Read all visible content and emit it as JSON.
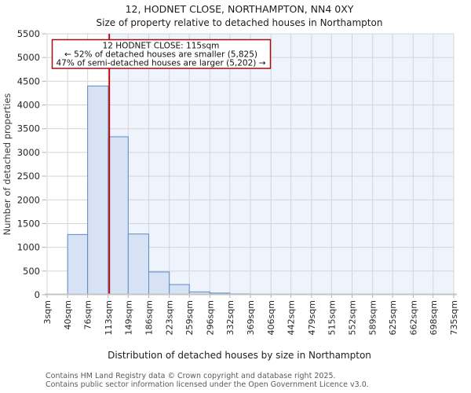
{
  "chart_data": {
    "type": "bar",
    "title": "12, HODNET CLOSE, NORTHAMPTON, NN4 0XY",
    "subtitle": "Size of property relative to detached houses in Northampton",
    "xlabel": "Distribution of detached houses by size in Northampton",
    "ylabel": "Number of detached properties",
    "bin_edges_sqm": [
      3,
      40,
      76,
      113,
      149,
      186,
      223,
      259,
      296,
      332,
      369,
      406,
      442,
      479,
      515,
      552,
      589,
      625,
      662,
      698,
      735
    ],
    "bin_labels": [
      "3sqm",
      "40sqm",
      "76sqm",
      "113sqm",
      "149sqm",
      "186sqm",
      "223sqm",
      "259sqm",
      "296sqm",
      "332sqm",
      "369sqm",
      "406sqm",
      "442sqm",
      "479sqm",
      "515sqm",
      "552sqm",
      "589sqm",
      "625sqm",
      "662sqm",
      "698sqm",
      "735sqm"
    ],
    "values": [
      0,
      1270,
      4400,
      3330,
      1280,
      480,
      215,
      60,
      35,
      20,
      15,
      0,
      0,
      0,
      0,
      0,
      0,
      0,
      0,
      0
    ],
    "ylim": [
      0,
      5500
    ],
    "ytick_step": 500,
    "grid": true,
    "legend": null,
    "marker": {
      "sqm": 115,
      "label": "12 HODNET CLOSE: 115sqm"
    },
    "annotation_lines": [
      "12 HODNET CLOSE: 115sqm",
      "← 52% of detached houses are smaller (5,825)",
      "47% of semi-detached houses are larger (5,202) →"
    ]
  },
  "footer": {
    "line1": "Contains HM Land Registry data © Crown copyright and database right 2025.",
    "line2": "Contains public sector information licensed under the Open Government Licence v3.0."
  },
  "colors": {
    "bar_fill": "#d7e3f4",
    "bar_stroke": "#5a8ac5",
    "marker_line": "#bf0000",
    "annotation_border": "#a50d0d",
    "grid": "#d4d4dc",
    "tick_mark": "#b3b3b3",
    "shaded_region": "#eff3fb",
    "axis_line": "#c4c4c4"
  }
}
